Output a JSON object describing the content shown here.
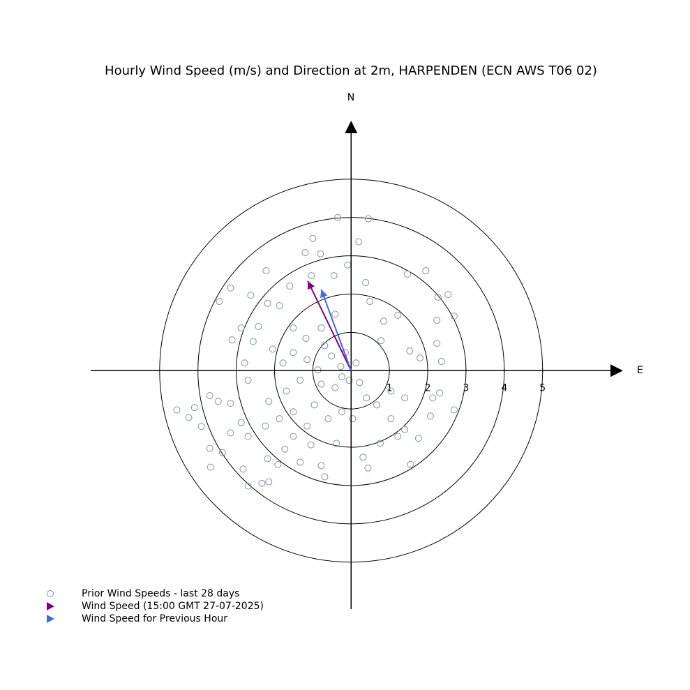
{
  "chart_data": {
    "type": "scatter",
    "title": "Hourly Wind Speed (m/s) and Direction at 2m, HARPENDEN (ECN AWS T06 02)",
    "north_label": "N",
    "east_label": "E",
    "xlim": [
      -6.8,
      7.1
    ],
    "ylim": [
      -6.2,
      6.5
    ],
    "xticks": [
      1,
      2,
      3,
      4,
      5
    ],
    "series": [
      {
        "name": "Prior Wind Speeds - last 28 days",
        "color": "#8090a8",
        "marker": "circle",
        "x": [
          -0.35,
          0.45,
          -1.0,
          -1.2,
          -0.8,
          0.2,
          -2.22,
          -2.62,
          -3.15,
          -3.44,
          -3.11,
          -2.87,
          -2.56,
          2.53,
          2.27,
          1.95,
          1.47,
          2.69,
          2.24,
          2.24,
          2.36,
          1.8,
          1.53,
          1.22,
          0.85,
          0.78,
          0.49,
          0.38,
          -0.09,
          -0.45,
          -1.04,
          -1.6,
          -1.87,
          -2.18,
          -2.42,
          -1.51,
          -1.18,
          -0.78,
          -0.42,
          -0.15,
          0.13,
          -0.27,
          -0.51,
          -0.24,
          -0.05,
          0.22,
          -0.42,
          -0.78,
          -1.33,
          -1.69,
          -2.15,
          -2.69,
          -3.15,
          -3.47,
          -3.69,
          -4.55,
          -4.24,
          -4.09,
          -3.91,
          -3.69,
          -3.67,
          -3.36,
          -3.15,
          -2.87,
          -2.69,
          -2.82,
          -2.69,
          -2.33,
          -2.15,
          -2.18,
          -1.91,
          -1.73,
          -1.51,
          -1.15,
          -1.05,
          -1.33,
          -0.78,
          -0.69,
          -0.38,
          -0.6,
          -0.24,
          0.04,
          0.31,
          0.44,
          0.76,
          1.04,
          1.22,
          1.4,
          1.55,
          1.76,
          2.07,
          2.69,
          2.31,
          2.13,
          1.4,
          1.04,
          0.67,
          0.4,
          -0.96,
          -1.51,
          -1.87,
          -2.24,
          -1.78,
          -1.51,
          -1.15,
          -0.87,
          -0.69,
          -2.78,
          -2.05
        ],
        "y": [
          3.98,
          3.95,
          3.44,
          3.07,
          3.04,
          3.35,
          2.6,
          1.96,
          2.15,
          1.8,
          0.8,
          1.11,
          0.76,
          1.98,
          1.91,
          2.6,
          2.51,
          1.42,
          1.31,
          0.71,
          0.24,
          0.33,
          0.51,
          1.44,
          1.29,
          0.78,
          1.8,
          2.29,
          2.75,
          2.47,
          2.47,
          2.2,
          1.69,
          1.75,
          1.15,
          1.11,
          0.84,
          1.11,
          1.47,
          0.47,
          0.2,
          0.11,
          0.38,
          -0.16,
          -0.25,
          -0.31,
          -0.44,
          -0.35,
          -0.25,
          -0.53,
          -0.8,
          -0.25,
          -0.85,
          -0.8,
          -0.65,
          -1.02,
          -1.22,
          -0.96,
          -1.45,
          -2.02,
          -2.51,
          -2.13,
          -1.62,
          -1.35,
          -1.71,
          -2.56,
          -3.0,
          -2.93,
          -2.89,
          -2.29,
          -2.44,
          -2.04,
          -1.71,
          -1.44,
          -1.93,
          -2.38,
          -2.47,
          -2.76,
          -1.89,
          -1.25,
          -1.07,
          -1.25,
          -2.25,
          -2.53,
          -1.89,
          -1.25,
          -1.71,
          -1.53,
          -2.44,
          -1.76,
          -1.18,
          -1.02,
          -0.58,
          -0.71,
          -0.71,
          -0.53,
          -0.89,
          -0.71,
          -0.89,
          -1.07,
          -1.25,
          -1.44,
          0.2,
          0.47,
          0.29,
          0.02,
          0.65,
          0.2,
          0.56
        ]
      },
      {
        "name": "Wind Speed (15:00 GMT 27-07-2025)",
        "color": "#800080",
        "marker": "arrow",
        "x": [
          -1.13
        ],
        "y": [
          2.33
        ]
      },
      {
        "name": "Wind Speed for Previous Hour",
        "color": "#4169e1",
        "marker": "arrow",
        "x": [
          -0.78
        ],
        "y": [
          2.11
        ]
      }
    ]
  }
}
